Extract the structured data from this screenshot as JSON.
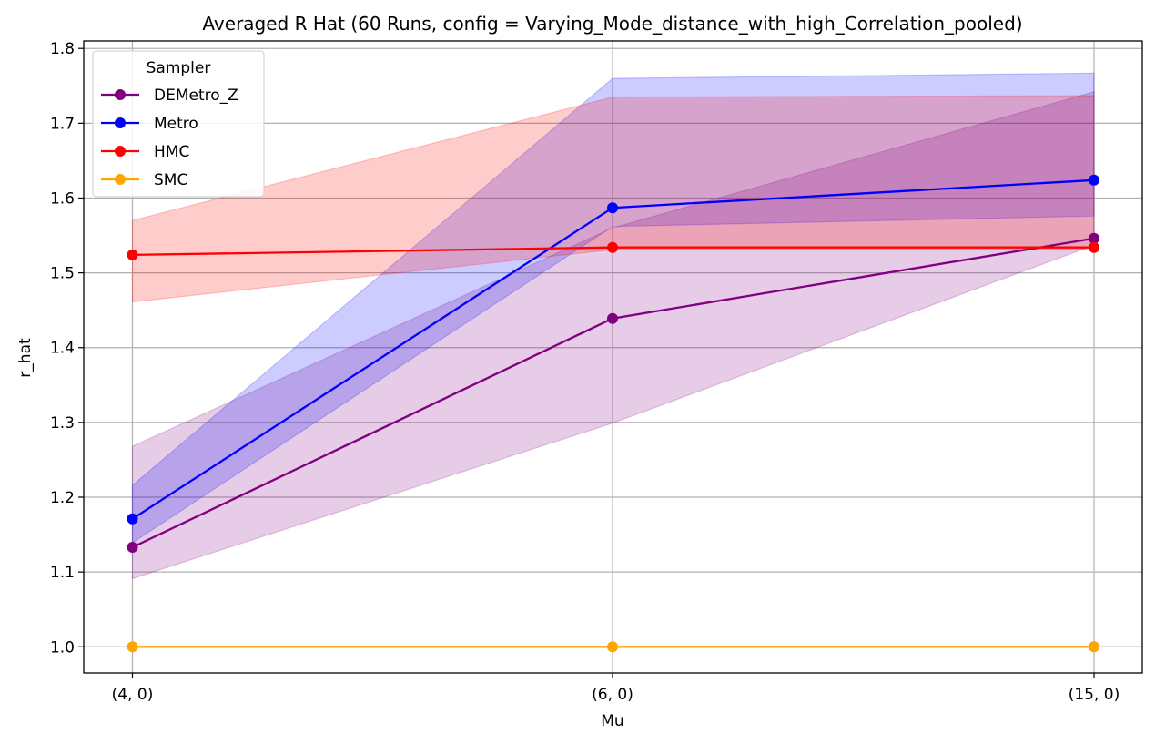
{
  "chart_data": {
    "type": "line",
    "title": "Averaged R Hat (60 Runs, config = Varying_Mode_distance_with_high_Correlation_pooled)",
    "xlabel": "Mu",
    "ylabel": "r_hat",
    "categories": [
      "(4, 0)",
      "(6, 0)",
      "(15, 0)"
    ],
    "ylim": [
      0.965,
      1.81
    ],
    "yticks": [
      1.0,
      1.1,
      1.2,
      1.3,
      1.4,
      1.5,
      1.6,
      1.7,
      1.8
    ],
    "ytick_labels": [
      "1.0",
      "1.1",
      "1.2",
      "1.3",
      "1.4",
      "1.5",
      "1.6",
      "1.7",
      "1.8"
    ],
    "grid": true,
    "legend": {
      "title": "Sampler",
      "placement": "top-left"
    },
    "series": [
      {
        "name": "DEMetro_Z",
        "color": "#800080",
        "values": [
          1.133,
          1.439,
          1.546
        ],
        "lower": [
          1.091,
          1.299,
          1.537
        ],
        "upper": [
          1.268,
          1.56,
          1.742
        ]
      },
      {
        "name": "Metro",
        "color": "#0000ff",
        "values": [
          1.171,
          1.587,
          1.624
        ],
        "lower": [
          1.139,
          1.562,
          1.576
        ],
        "upper": [
          1.216,
          1.76,
          1.767
        ]
      },
      {
        "name": "HMC",
        "color": "#ff0000",
        "values": [
          1.524,
          1.534,
          1.534
        ],
        "lower": [
          1.461,
          1.531,
          1.531
        ],
        "upper": [
          1.57,
          1.735,
          1.737
        ]
      },
      {
        "name": "SMC",
        "color": "#ffa500",
        "values": [
          1.0,
          1.0,
          1.0
        ],
        "lower": [
          1.0,
          1.0,
          1.0
        ],
        "upper": [
          1.0,
          1.0,
          1.0
        ]
      }
    ]
  }
}
